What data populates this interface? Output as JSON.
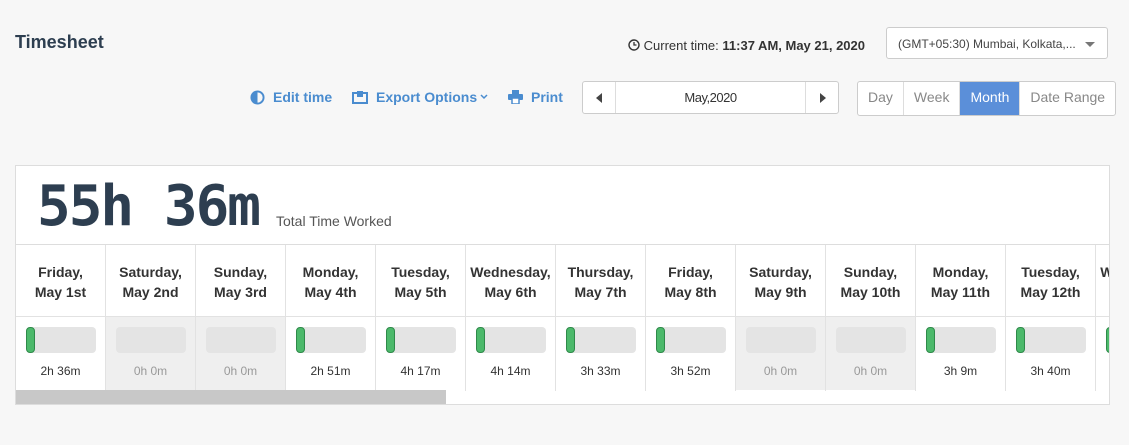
{
  "header": {
    "title": "Timesheet"
  },
  "current_time": {
    "label": "Current time:",
    "value": "11:37 AM, May 21, 2020"
  },
  "timezone": "(GMT+05:30) Mumbai, Kolkata,...",
  "toolbar": {
    "edit": "Edit time",
    "export": "Export Options",
    "print": "Print"
  },
  "period": "May,2020",
  "views": [
    "Day",
    "Week",
    "Month",
    "Date Range"
  ],
  "selected_view_index": 2,
  "summary": {
    "total": "55h 36m",
    "caption": "Total Time Worked"
  },
  "days": [
    {
      "day": "Friday,",
      "date": "May 1st",
      "time": "2h 36m",
      "off": false
    },
    {
      "day": "Saturday,",
      "date": "May 2nd",
      "time": "0h 0m",
      "off": true
    },
    {
      "day": "Sunday,",
      "date": "May 3rd",
      "time": "0h 0m",
      "off": true
    },
    {
      "day": "Monday,",
      "date": "May 4th",
      "time": "2h 51m",
      "off": false
    },
    {
      "day": "Tuesday,",
      "date": "May 5th",
      "time": "4h 17m",
      "off": false
    },
    {
      "day": "Wednesday,",
      "date": "May 6th",
      "time": "4h 14m",
      "off": false
    },
    {
      "day": "Thursday,",
      "date": "May 7th",
      "time": "3h 33m",
      "off": false
    },
    {
      "day": "Friday,",
      "date": "May 8th",
      "time": "3h 52m",
      "off": false
    },
    {
      "day": "Saturday,",
      "date": "May 9th",
      "time": "0h 0m",
      "off": true
    },
    {
      "day": "Sunday,",
      "date": "May 10th",
      "time": "0h 0m",
      "off": true
    },
    {
      "day": "Monday,",
      "date": "May 11th",
      "time": "3h 9m",
      "off": false
    },
    {
      "day": "Tuesday,",
      "date": "May 12th",
      "time": "3h 40m",
      "off": false
    },
    {
      "day": "Wednesday,",
      "off": false
    }
  ]
}
